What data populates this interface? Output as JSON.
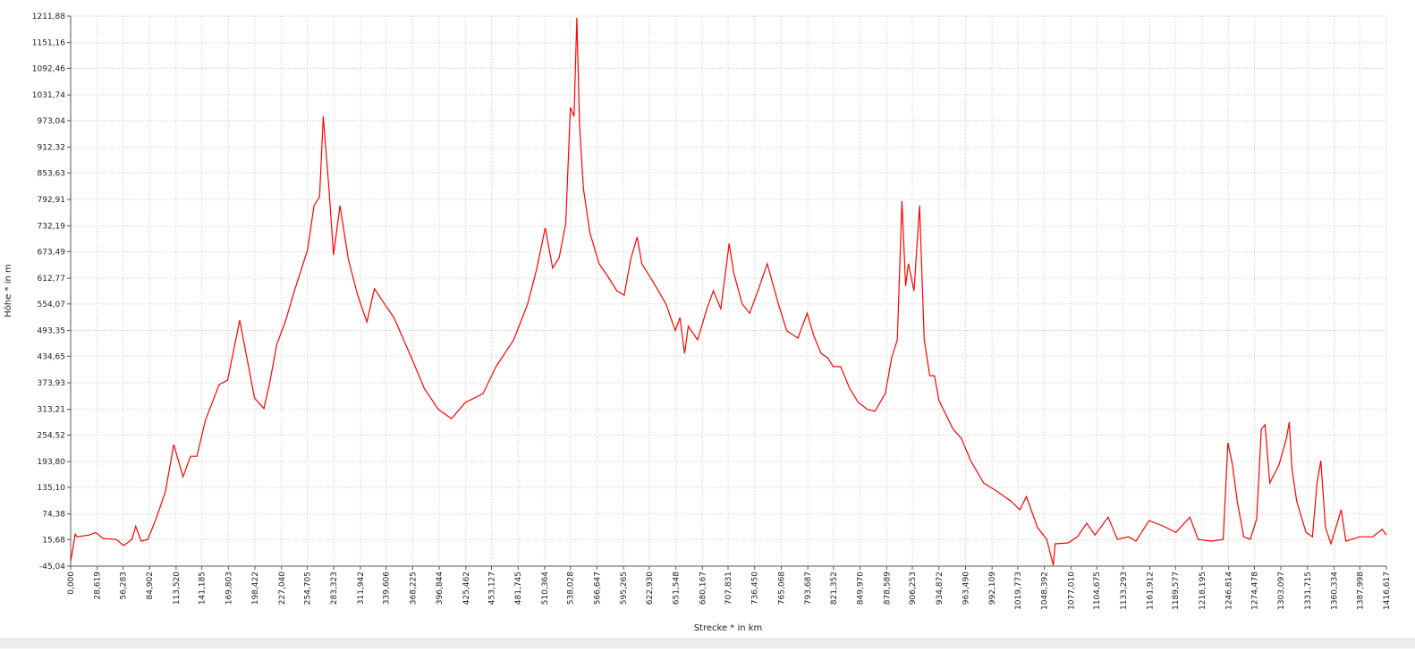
{
  "chart_data": {
    "type": "line",
    "x_label": "Strecke *  in  km",
    "y_label": "Höhe *  in  m",
    "color": "#ff0000",
    "grid": true,
    "x": [
      0,
      5,
      7,
      20,
      27,
      35,
      49,
      57,
      66,
      70,
      76,
      83,
      92,
      102,
      111,
      121,
      129,
      136,
      145,
      160,
      169,
      182,
      198,
      208,
      214,
      222,
      231,
      241,
      255,
      262,
      268,
      272,
      278,
      283,
      290,
      299,
      309,
      319,
      327,
      338,
      348,
      367,
      381,
      396,
      410,
      425,
      444,
      458,
      477,
      492,
      502,
      511,
      519,
      526,
      533,
      538,
      542,
      545,
      548,
      552,
      559,
      569,
      579,
      588,
      596,
      603,
      610,
      615,
      627,
      641,
      651,
      656,
      661,
      665,
      675,
      685,
      692,
      700,
      709,
      714,
      723,
      731,
      740,
      750,
      762,
      771,
      783,
      793,
      800,
      808,
      815,
      821,
      829,
      839,
      848,
      858,
      866,
      877,
      884,
      890,
      895,
      899,
      902,
      908,
      914,
      919,
      925,
      930,
      935,
      950,
      959,
      969,
      983,
      998,
      1012,
      1022,
      1029,
      1041,
      1051,
      1058,
      1060,
      1074,
      1084,
      1094,
      1103,
      1117,
      1127,
      1139,
      1147,
      1161,
      1176,
      1190,
      1205,
      1214,
      1228,
      1241,
      1246,
      1251,
      1256,
      1263,
      1270,
      1277,
      1282,
      1286,
      1291,
      1301,
      1309,
      1312,
      1315,
      1320,
      1330,
      1337,
      1342,
      1346,
      1351,
      1357,
      1368,
      1373,
      1388,
      1402,
      1412,
      1416.6
    ],
    "values": [
      -34,
      28,
      22,
      26,
      32,
      18,
      16,
      2,
      16,
      46,
      12,
      16,
      63,
      125,
      233,
      159,
      206,
      206,
      288,
      370,
      380,
      517,
      339,
      315,
      370,
      462,
      513,
      585,
      677,
      779,
      799,
      983,
      820,
      666,
      779,
      656,
      574,
      513,
      589,
      554,
      523,
      431,
      360,
      313,
      292,
      329,
      349,
      411,
      472,
      554,
      636,
      728,
      636,
      660,
      738,
      1003,
      983,
      1208,
      962,
      819,
      717,
      646,
      615,
      584,
      574,
      656,
      707,
      646,
      605,
      554,
      493,
      523,
      441,
      503,
      472,
      543,
      584,
      543,
      692,
      625,
      554,
      533,
      584,
      646,
      554,
      493,
      476,
      533,
      482,
      441,
      431,
      411,
      411,
      360,
      329,
      313,
      309,
      349,
      431,
      472,
      789,
      595,
      646,
      584,
      779,
      472,
      390,
      390,
      333,
      268,
      247,
      196,
      145,
      125,
      104,
      84,
      114,
      43,
      16,
      -43,
      6,
      8,
      22,
      53,
      26,
      67,
      16,
      22,
      12,
      59,
      47,
      32,
      67,
      16,
      12,
      16,
      237,
      186,
      104,
      22,
      16,
      63,
      268,
      278,
      145,
      186,
      247,
      284,
      176,
      104,
      32,
      22,
      145,
      196,
      43,
      6,
      84,
      12,
      22,
      22,
      39,
      26
    ],
    "xlim": [
      0,
      1416.617
    ],
    "ylim": [
      -45.04,
      1211.88
    ],
    "xticks": [
      {
        "value": 0,
        "label": "0,000"
      },
      {
        "value": 28.619,
        "label": "28,619"
      },
      {
        "value": 56.283,
        "label": "56,283"
      },
      {
        "value": 84.902,
        "label": "84,902"
      },
      {
        "value": 113.52,
        "label": "113,520"
      },
      {
        "value": 141.185,
        "label": "141,185"
      },
      {
        "value": 169.803,
        "label": "169,803"
      },
      {
        "value": 198.422,
        "label": "198,422"
      },
      {
        "value": 227.04,
        "label": "227,040"
      },
      {
        "value": 254.705,
        "label": "254,705"
      },
      {
        "value": 283.323,
        "label": "283,323"
      },
      {
        "value": 311.942,
        "label": "311,942"
      },
      {
        "value": 339.606,
        "label": "339,606"
      },
      {
        "value": 368.225,
        "label": "368,225"
      },
      {
        "value": 396.844,
        "label": "396,844"
      },
      {
        "value": 425.462,
        "label": "425,462"
      },
      {
        "value": 453.127,
        "label": "453,127"
      },
      {
        "value": 481.745,
        "label": "481,745"
      },
      {
        "value": 510.364,
        "label": "510,364"
      },
      {
        "value": 538.028,
        "label": "538,028"
      },
      {
        "value": 566.647,
        "label": "566,647"
      },
      {
        "value": 595.265,
        "label": "595,265"
      },
      {
        "value": 622.93,
        "label": "622,930"
      },
      {
        "value": 651.548,
        "label": "651,548"
      },
      {
        "value": 680.167,
        "label": "680,167"
      },
      {
        "value": 707.831,
        "label": "707,831"
      },
      {
        "value": 736.45,
        "label": "736,450"
      },
      {
        "value": 765.068,
        "label": "765,068"
      },
      {
        "value": 793.687,
        "label": "793,687"
      },
      {
        "value": 821.352,
        "label": "821,352"
      },
      {
        "value": 849.97,
        "label": "849,970"
      },
      {
        "value": 878.589,
        "label": "878,589"
      },
      {
        "value": 906.253,
        "label": "906,253"
      },
      {
        "value": 934.872,
        "label": "934,872"
      },
      {
        "value": 963.49,
        "label": "963,490"
      },
      {
        "value": 992.109,
        "label": "992,109"
      },
      {
        "value": 1019.773,
        "label": "1019,773"
      },
      {
        "value": 1048.392,
        "label": "1048,392"
      },
      {
        "value": 1077.01,
        "label": "1077,010"
      },
      {
        "value": 1104.675,
        "label": "1104,675"
      },
      {
        "value": 1133.293,
        "label": "1133,293"
      },
      {
        "value": 1161.912,
        "label": "1161,912"
      },
      {
        "value": 1189.577,
        "label": "1189,577"
      },
      {
        "value": 1218.195,
        "label": "1218,195"
      },
      {
        "value": 1246.814,
        "label": "1246,814"
      },
      {
        "value": 1274.478,
        "label": "1274,478"
      },
      {
        "value": 1303.097,
        "label": "1303,097"
      },
      {
        "value": 1331.715,
        "label": "1331,715"
      },
      {
        "value": 1360.334,
        "label": "1360,334"
      },
      {
        "value": 1387.998,
        "label": "1387,998"
      },
      {
        "value": 1416.617,
        "label": "1416,617"
      }
    ],
    "yticks": [
      {
        "value": -45.04,
        "label": "-45,04"
      },
      {
        "value": 15.68,
        "label": "15,68"
      },
      {
        "value": 74.38,
        "label": "74,38"
      },
      {
        "value": 135.1,
        "label": "135,10"
      },
      {
        "value": 193.8,
        "label": "193,80"
      },
      {
        "value": 254.52,
        "label": "254,52"
      },
      {
        "value": 313.21,
        "label": "313,21"
      },
      {
        "value": 373.93,
        "label": "373,93"
      },
      {
        "value": 434.65,
        "label": "434,65"
      },
      {
        "value": 493.35,
        "label": "493,35"
      },
      {
        "value": 554.07,
        "label": "554,07"
      },
      {
        "value": 612.77,
        "label": "612,77"
      },
      {
        "value": 673.49,
        "label": "673,49"
      },
      {
        "value": 732.19,
        "label": "732,19"
      },
      {
        "value": 792.91,
        "label": "792,91"
      },
      {
        "value": 853.63,
        "label": "853,63"
      },
      {
        "value": 912.32,
        "label": "912,32"
      },
      {
        "value": 973.04,
        "label": "973,04"
      },
      {
        "value": 1031.74,
        "label": "1031,74"
      },
      {
        "value": 1092.46,
        "label": "1092,46"
      },
      {
        "value": 1151.16,
        "label": "1151,16"
      },
      {
        "value": 1211.88,
        "label": "1211,88"
      }
    ]
  }
}
